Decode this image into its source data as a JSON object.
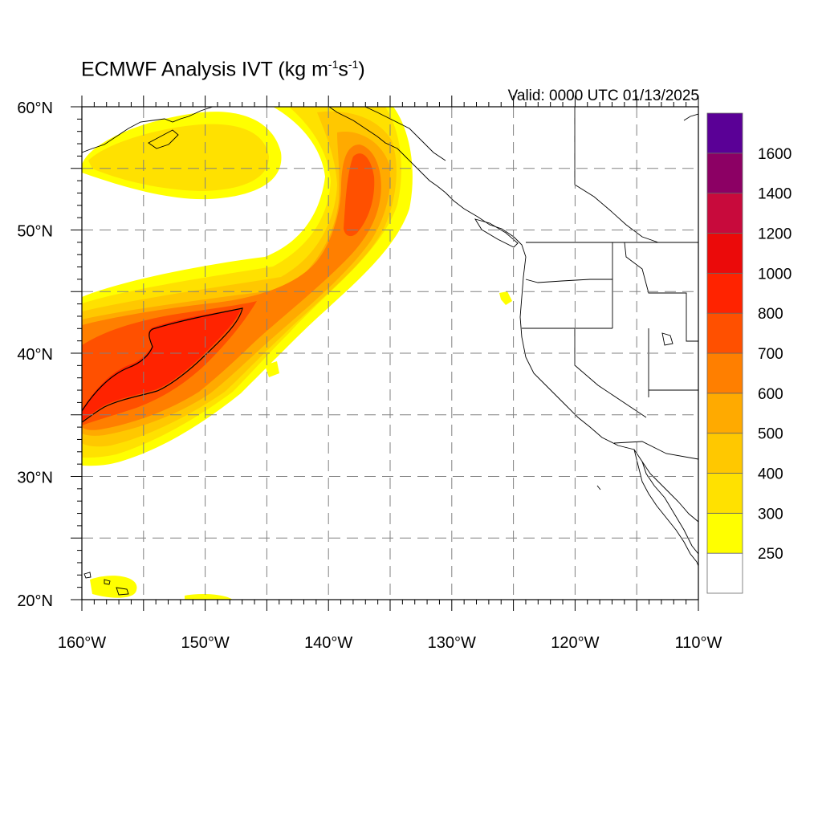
{
  "title": {
    "main": "ECMWF Analysis IVT (kg m",
    "exp1": "-1",
    "mid": "s",
    "exp2": "-1",
    "close": ")"
  },
  "valid_text": "Valid: 0000 UTC 01/13/2025",
  "map": {
    "projection": "cylindrical-equidistant",
    "lon_range": [
      -160,
      -110
    ],
    "lat_range": [
      20,
      60
    ],
    "grid": true,
    "grid_style": "dashed",
    "lon_ticks": [
      {
        "value": -160,
        "label": "160°W"
      },
      {
        "value": -150,
        "label": "150°W"
      },
      {
        "value": -140,
        "label": "140°W"
      },
      {
        "value": -130,
        "label": "130°W"
      },
      {
        "value": -120,
        "label": "120°W"
      },
      {
        "value": -110,
        "label": "110°W"
      }
    ],
    "lat_ticks": [
      {
        "value": 60,
        "label": "60°N"
      },
      {
        "value": 50,
        "label": "50°N"
      },
      {
        "value": 40,
        "label": "40°N"
      },
      {
        "value": 30,
        "label": "30°N"
      },
      {
        "value": 20,
        "label": "20°N"
      }
    ],
    "field": "Integrated vapor transport",
    "contour_level": 800
  },
  "colorbar": {
    "levels": [
      {
        "label": "",
        "color": "#ffffff"
      },
      {
        "label": "250",
        "color": "#ffff00"
      },
      {
        "label": "300",
        "color": "#ffe100"
      },
      {
        "label": "400",
        "color": "#ffc800"
      },
      {
        "label": "500",
        "color": "#ffaa00"
      },
      {
        "label": "600",
        "color": "#ff7f00"
      },
      {
        "label": "700",
        "color": "#ff5000"
      },
      {
        "label": "800",
        "color": "#ff2300"
      },
      {
        "label": "1000",
        "color": "#eb0a0a"
      },
      {
        "label": "1200",
        "color": "#c80a3c"
      },
      {
        "label": "1400",
        "color": "#8c0064"
      },
      {
        "label": "1600",
        "color": "#5a0096"
      }
    ]
  }
}
